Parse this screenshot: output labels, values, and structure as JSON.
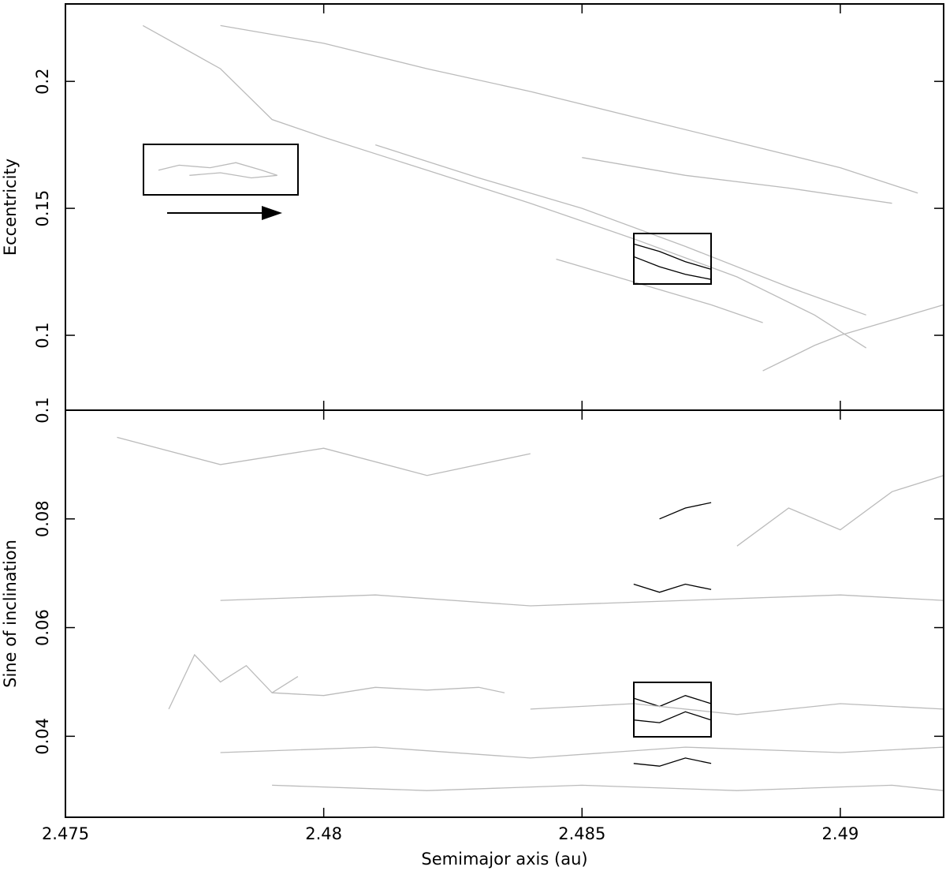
{
  "chart_data": [
    {
      "type": "line",
      "y_label": "Eccentricity",
      "xlim": [
        2.475,
        2.492
      ],
      "xticks": [
        2.475,
        2.48,
        2.485,
        2.49
      ],
      "ylim": [
        0.0705,
        0.2305
      ],
      "yticks": [
        0.1,
        0.15,
        0.2
      ],
      "series": [
        {
          "color": "#bbbbbb",
          "x": [
            2.4765,
            2.478,
            2.479,
            2.48,
            2.482,
            2.484,
            2.486,
            2.488,
            2.4895,
            2.4905
          ],
          "values": [
            0.222,
            0.205,
            0.185,
            0.178,
            0.165,
            0.152,
            0.138,
            0.123,
            0.108,
            0.095
          ]
        },
        {
          "color": "#bbbbbb",
          "x": [
            2.478,
            2.48,
            2.482,
            2.484,
            2.486,
            2.488,
            2.49,
            2.4915
          ],
          "values": [
            0.222,
            0.215,
            0.205,
            0.196,
            0.186,
            0.176,
            0.166,
            0.156
          ]
        },
        {
          "color": "#bbbbbb",
          "x": [
            2.481,
            2.483,
            2.485,
            2.487,
            2.489,
            2.4905
          ],
          "values": [
            0.175,
            0.162,
            0.15,
            0.135,
            0.119,
            0.108
          ]
        },
        {
          "color": "#bbbbbb",
          "x": [
            2.4768,
            2.4772,
            2.4778,
            2.4783,
            2.4788,
            2.4791,
            2.4786,
            2.478,
            2.4774
          ],
          "values": [
            0.165,
            0.167,
            0.166,
            0.168,
            0.165,
            0.163,
            0.162,
            0.164,
            0.163
          ]
        },
        {
          "color": "#bbbbbb",
          "x": [
            2.4845,
            2.4855,
            2.4865,
            2.4875,
            2.4885
          ],
          "values": [
            0.13,
            0.124,
            0.118,
            0.112,
            0.105
          ]
        },
        {
          "color": "#bbbbbb",
          "x": [
            2.4885,
            2.489,
            2.4895,
            2.49,
            2.491,
            2.492
          ],
          "values": [
            0.086,
            0.091,
            0.096,
            0.1,
            0.106,
            0.112
          ]
        },
        {
          "color": "#bbbbbb",
          "x": [
            2.485,
            2.487,
            2.489,
            2.491
          ],
          "values": [
            0.17,
            0.163,
            0.158,
            0.152
          ]
        },
        {
          "color": "#000000",
          "x": [
            2.486,
            2.4865,
            2.487,
            2.4875
          ],
          "values": [
            0.136,
            0.133,
            0.129,
            0.126
          ]
        },
        {
          "color": "#000000",
          "x": [
            2.486,
            2.4865,
            2.487,
            2.4875
          ],
          "values": [
            0.131,
            0.127,
            0.124,
            0.122
          ]
        }
      ]
    },
    {
      "type": "line",
      "x_label": "Semimajor axis (au)",
      "y_label": "Sine of inclination",
      "xlim": [
        2.475,
        2.492
      ],
      "xticks": [
        2.475,
        2.48,
        2.485,
        2.49
      ],
      "ylim": [
        0.0251,
        0.1
      ],
      "yticks": [
        0.04,
        0.06,
        0.08,
        0.1
      ],
      "series": [
        {
          "color": "#bbbbbb",
          "x": [
            2.477,
            2.4775,
            2.478,
            2.4785,
            2.479,
            2.4795
          ],
          "values": [
            0.045,
            0.055,
            0.05,
            0.053,
            0.048,
            0.051
          ]
        },
        {
          "color": "#bbbbbb",
          "x": [
            2.479,
            2.48,
            2.481,
            2.482,
            2.483,
            2.4835
          ],
          "values": [
            0.048,
            0.0475,
            0.049,
            0.0485,
            0.049,
            0.048
          ]
        },
        {
          "color": "#bbbbbb",
          "x": [
            2.478,
            2.481,
            2.484,
            2.487,
            2.49,
            2.492
          ],
          "values": [
            0.065,
            0.066,
            0.064,
            0.065,
            0.066,
            0.065
          ]
        },
        {
          "color": "#bbbbbb",
          "x": [
            2.479,
            2.482,
            2.485,
            2.488,
            2.491,
            2.492
          ],
          "values": [
            0.031,
            0.03,
            0.031,
            0.03,
            0.031,
            0.03
          ]
        },
        {
          "color": "#bbbbbb",
          "x": [
            2.478,
            2.481,
            2.484,
            2.487,
            2.49,
            2.492
          ],
          "values": [
            0.037,
            0.038,
            0.036,
            0.038,
            0.037,
            0.038
          ]
        },
        {
          "color": "#bbbbbb",
          "x": [
            2.484,
            2.486,
            2.488,
            2.49,
            2.492
          ],
          "values": [
            0.045,
            0.046,
            0.044,
            0.046,
            0.045
          ]
        },
        {
          "color": "#bbbbbb",
          "x": [
            2.488,
            2.489,
            2.49,
            2.491,
            2.492
          ],
          "values": [
            0.075,
            0.082,
            0.078,
            0.085,
            0.088
          ]
        },
        {
          "color": "#bbbbbb",
          "x": [
            2.476,
            2.478,
            2.48,
            2.482,
            2.484
          ],
          "values": [
            0.095,
            0.09,
            0.093,
            0.088,
            0.092
          ]
        },
        {
          "color": "#000000",
          "x": [
            2.486,
            2.4865,
            2.487,
            2.4875
          ],
          "values": [
            0.047,
            0.0455,
            0.0475,
            0.046
          ]
        },
        {
          "color": "#000000",
          "x": [
            2.486,
            2.4865,
            2.487,
            2.4875
          ],
          "values": [
            0.043,
            0.0425,
            0.0445,
            0.043
          ]
        },
        {
          "color": "#000000",
          "x": [
            2.486,
            2.4865,
            2.487,
            2.4875
          ],
          "values": [
            0.068,
            0.0665,
            0.068,
            0.067
          ]
        },
        {
          "color": "#000000",
          "x": [
            2.4865,
            2.487,
            2.4875
          ],
          "values": [
            0.08,
            0.082,
            0.083
          ]
        },
        {
          "color": "#000000",
          "x": [
            2.486,
            2.4865,
            2.487,
            2.4875
          ],
          "values": [
            0.035,
            0.0345,
            0.036,
            0.035
          ]
        }
      ]
    }
  ]
}
